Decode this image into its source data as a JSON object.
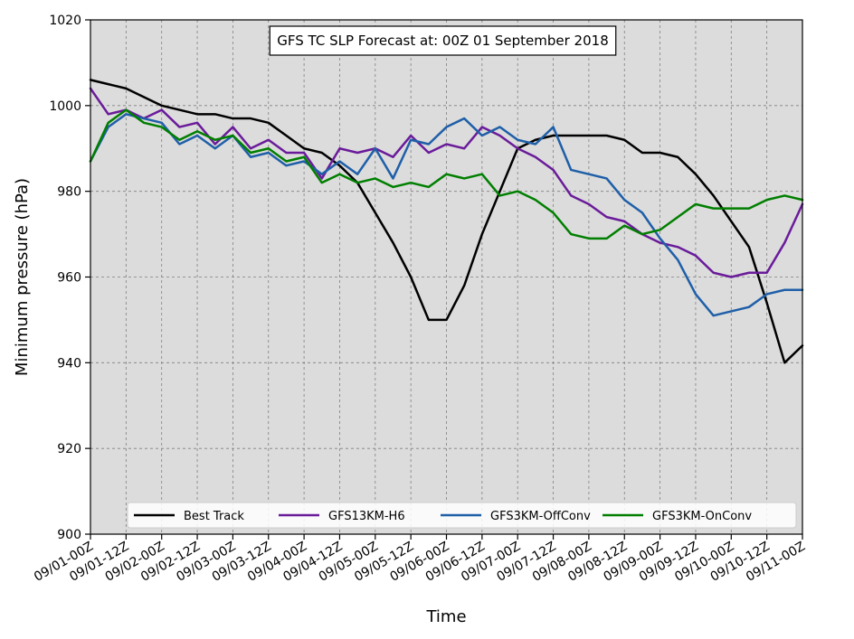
{
  "chart_data": {
    "type": "line",
    "title": "GFS TC SLP Forecast at: 00Z 01 September 2018",
    "xlabel": "Time",
    "ylabel": "Minimum pressure (hPa)",
    "ylim": [
      900,
      1020
    ],
    "yticks": [
      900,
      920,
      940,
      960,
      980,
      1000,
      1020
    ],
    "xlim": [
      0,
      40
    ],
    "xtick_step": 2,
    "xtick_labels": [
      "09/01-00Z",
      "09/01-12Z",
      "09/02-00Z",
      "09/02-12Z",
      "09/03-00Z",
      "09/03-12Z",
      "09/04-00Z",
      "09/04-12Z",
      "09/05-00Z",
      "09/05-12Z",
      "09/06-00Z",
      "09/06-12Z",
      "09/07-00Z",
      "09/07-12Z",
      "09/08-00Z",
      "09/08-12Z",
      "09/09-00Z",
      "09/09-12Z",
      "09/10-00Z",
      "09/10-12Z",
      "09/11-00Z"
    ],
    "x_interval": "6-hourly from 09/01-00Z",
    "grid": true,
    "plot_background": "#dcdcdc",
    "legend_position": "lower center",
    "series": [
      {
        "name": "Best Track",
        "color": "#000000",
        "values": [
          1006,
          1005,
          1004,
          1002,
          1000,
          999,
          998,
          998,
          997,
          997,
          996,
          993,
          990,
          989,
          986,
          982,
          975,
          968,
          960,
          950,
          950,
          958,
          970,
          980,
          990,
          992,
          993,
          993,
          993,
          993,
          992,
          989,
          989,
          988,
          984,
          979,
          973,
          967,
          954,
          940,
          944
        ]
      },
      {
        "name": "GFS13KM-H6",
        "color": "#6a1b9a",
        "values": [
          1004,
          998,
          999,
          997,
          999,
          995,
          996,
          991,
          995,
          990,
          992,
          989,
          989,
          983,
          990,
          989,
          990,
          988,
          993,
          989,
          991,
          990,
          995,
          993,
          990,
          988,
          985,
          979,
          977,
          974,
          973,
          970,
          968,
          967,
          965,
          961,
          960,
          961,
          961,
          968,
          977
        ]
      },
      {
        "name": "GFS3KM-OffConv",
        "color": "#1f5fa8",
        "values": [
          987,
          995,
          998,
          997,
          996,
          991,
          993,
          990,
          993,
          988,
          989,
          986,
          987,
          984,
          987,
          984,
          990,
          983,
          992,
          991,
          995,
          997,
          993,
          995,
          992,
          991,
          995,
          985,
          984,
          983,
          978,
          975,
          969,
          964,
          956,
          951,
          952,
          953,
          956,
          957,
          957
        ]
      },
      {
        "name": "GFS3KM-OnConv",
        "color": "#007f00",
        "values": [
          987,
          996,
          999,
          996,
          995,
          992,
          994,
          992,
          993,
          989,
          990,
          987,
          988,
          982,
          984,
          982,
          983,
          981,
          982,
          981,
          984,
          983,
          984,
          979,
          980,
          978,
          975,
          970,
          969,
          969,
          972,
          970,
          971,
          974,
          977,
          976,
          976,
          976,
          978,
          979,
          978
        ]
      }
    ]
  }
}
